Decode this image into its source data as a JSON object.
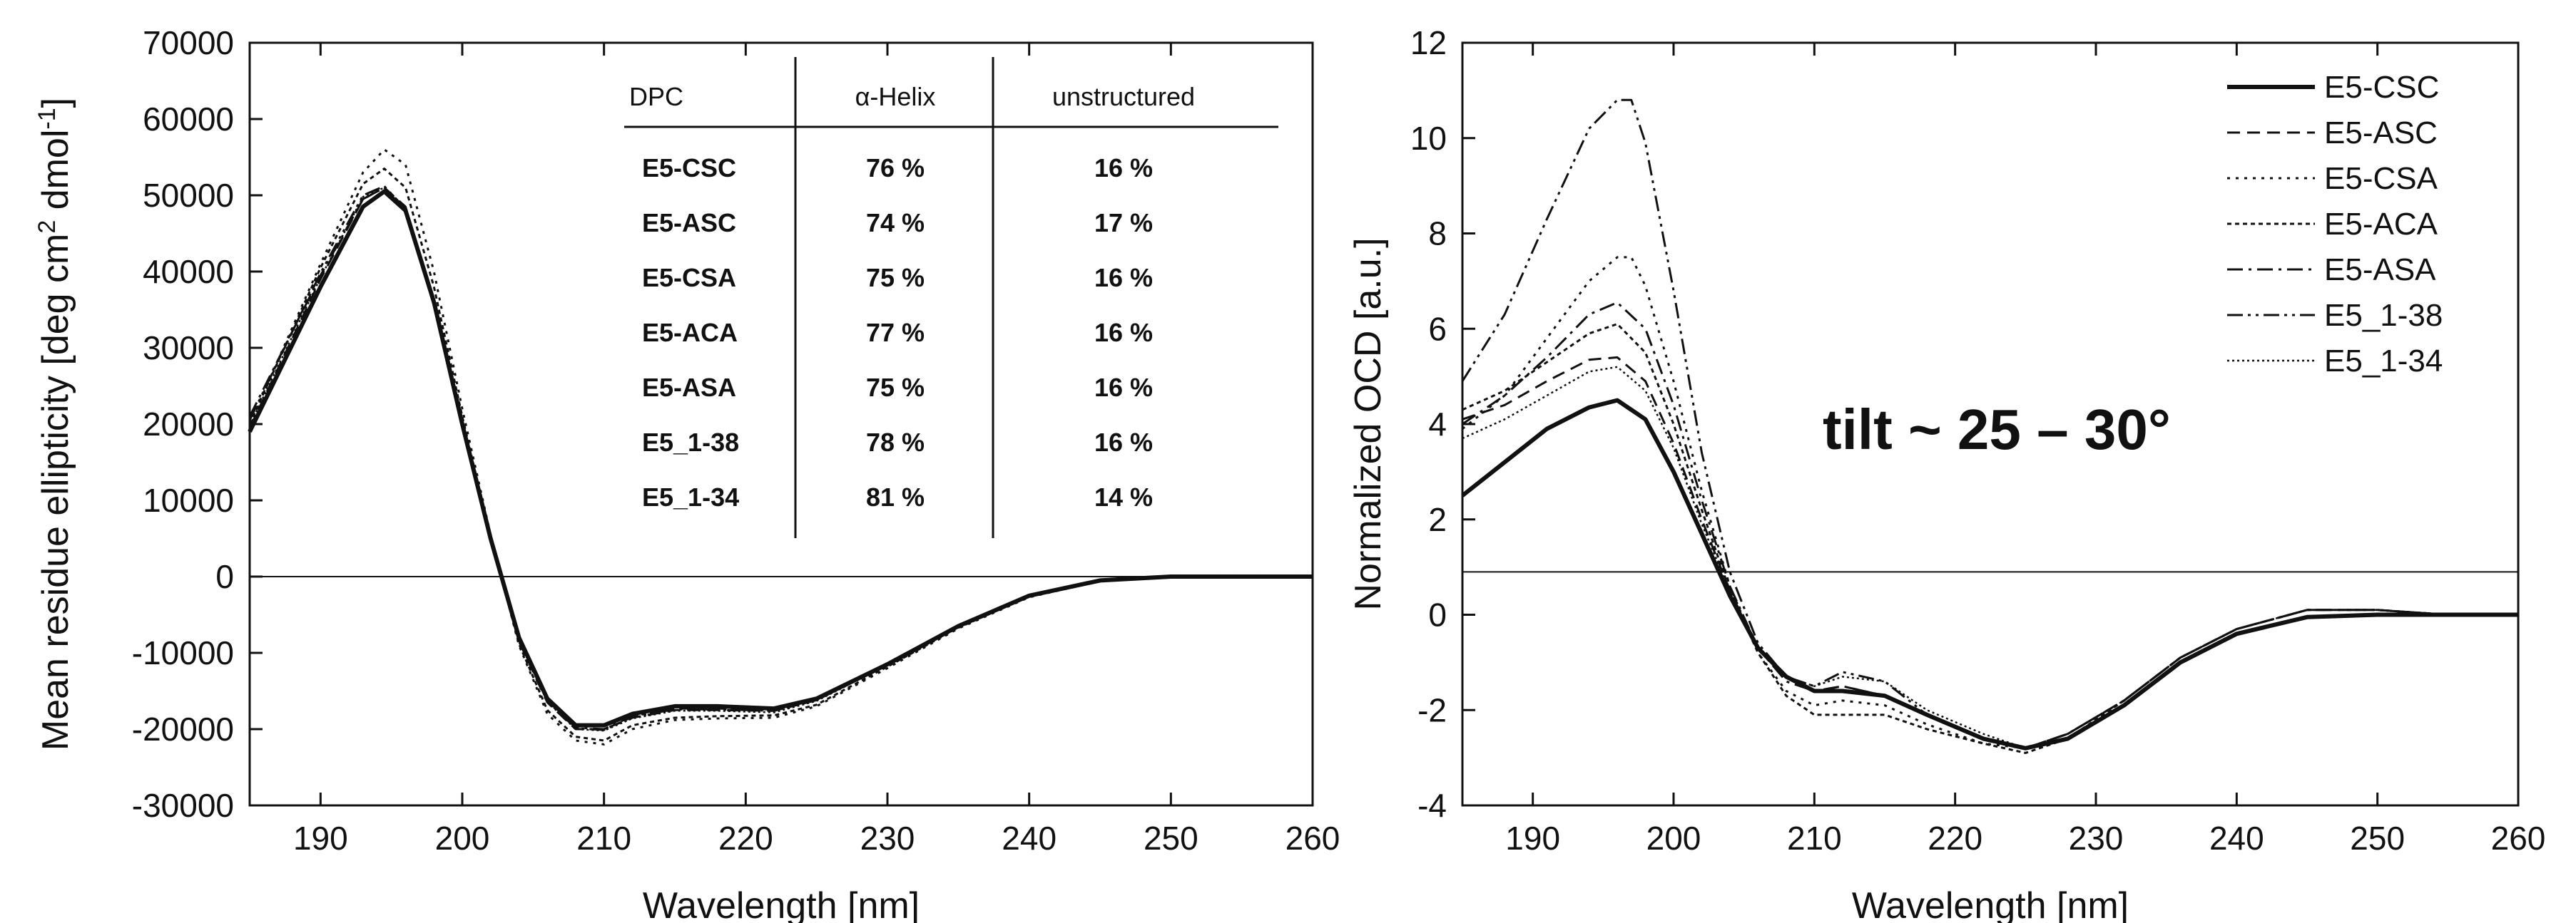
{
  "chart_data": [
    {
      "type": "line",
      "title": "",
      "xlabel": "Wavelength [nm]",
      "ylabel": "Mean residue ellipticity [deg cm² dmol⁻¹]",
      "ylabel_parts": [
        "Mean residue ellipticity [deg cm",
        "2",
        " dmol",
        "-1",
        "]"
      ],
      "xlim": [
        185,
        260
      ],
      "ylim": [
        -30000,
        70000
      ],
      "xticks": [
        190,
        200,
        210,
        220,
        230,
        240,
        250,
        260
      ],
      "yticks": [
        -30000,
        -20000,
        -10000,
        0,
        10000,
        20000,
        30000,
        40000,
        50000,
        60000,
        70000
      ],
      "grid": false,
      "zero_line": 0,
      "series": [
        {
          "style": "solid-bold",
          "x": [
            185,
            190,
            193,
            194.5,
            196,
            198,
            200,
            202,
            204,
            206,
            208,
            210,
            212,
            215,
            218,
            222,
            225,
            230,
            235,
            240,
            245,
            250,
            255,
            260
          ],
          "y": [
            19000,
            38000,
            48500,
            50500,
            48000,
            36000,
            20000,
            5000,
            -8000,
            -16000,
            -19500,
            -19500,
            -18000,
            -17000,
            -17000,
            -17300,
            -16000,
            -11500,
            -6500,
            -2500,
            -500,
            0,
            0,
            0
          ]
        },
        {
          "style": "dash",
          "x": [
            185,
            190,
            193,
            194.5,
            196,
            198,
            200,
            202,
            204,
            206,
            208,
            210,
            212,
            215,
            218,
            222,
            225,
            230,
            235,
            240,
            245,
            250,
            255,
            260
          ],
          "y": [
            19500,
            39000,
            49500,
            51000,
            48500,
            36000,
            20000,
            5000,
            -8500,
            -16500,
            -20000,
            -20000,
            -18500,
            -17500,
            -17500,
            -17600,
            -16200,
            -11600,
            -6600,
            -2600,
            -600,
            0,
            0,
            0
          ]
        },
        {
          "style": "dot",
          "x": [
            185,
            190,
            193,
            194.5,
            196,
            198,
            200,
            202,
            204,
            206,
            208,
            210,
            212,
            215,
            218,
            222,
            225,
            230,
            235,
            240,
            245,
            250,
            255,
            260
          ],
          "y": [
            20000,
            41000,
            53000,
            56000,
            54000,
            40000,
            22000,
            5500,
            -9000,
            -18000,
            -21500,
            -22000,
            -20000,
            -18800,
            -18600,
            -18500,
            -17000,
            -12000,
            -6800,
            -2700,
            -600,
            0,
            0,
            0
          ]
        },
        {
          "style": "dot-dense",
          "x": [
            185,
            190,
            193,
            194.5,
            196,
            198,
            200,
            202,
            204,
            206,
            208,
            210,
            212,
            215,
            218,
            222,
            225,
            230,
            235,
            240,
            245,
            250,
            255,
            260
          ],
          "y": [
            20000,
            40500,
            51500,
            53500,
            51000,
            38000,
            21000,
            5200,
            -8800,
            -17500,
            -21000,
            -21500,
            -19500,
            -18500,
            -18300,
            -18200,
            -16800,
            -11800,
            -6700,
            -2600,
            -600,
            0,
            0,
            0
          ]
        },
        {
          "style": "dash-dot",
          "x": [
            185,
            190,
            193,
            194.5,
            196,
            198,
            200,
            202,
            204,
            206,
            208,
            210,
            212,
            215,
            218,
            222,
            225,
            230,
            235,
            240,
            245,
            250,
            255,
            260
          ],
          "y": [
            21000,
            39500,
            49500,
            51000,
            48000,
            35500,
            19500,
            4800,
            -8200,
            -16200,
            -19800,
            -20000,
            -18300,
            -17300,
            -17300,
            -17500,
            -16100,
            -11500,
            -6500,
            -2500,
            -500,
            0,
            0,
            0
          ]
        },
        {
          "style": "dash-dot-dot",
          "x": [
            185,
            190,
            193,
            194.5,
            196,
            198,
            200,
            202,
            204,
            206,
            208,
            210,
            212,
            215,
            218,
            222,
            225,
            230,
            235,
            240,
            245,
            250,
            255,
            260
          ],
          "y": [
            20500,
            39800,
            50000,
            51200,
            48200,
            35800,
            19800,
            4900,
            -8300,
            -16300,
            -19900,
            -20100,
            -18400,
            -17400,
            -17400,
            -17600,
            -16200,
            -11600,
            -6600,
            -2600,
            -600,
            0,
            0,
            0
          ]
        },
        {
          "style": "dot-fine",
          "x": [
            185,
            190,
            193,
            194.5,
            196,
            198,
            200,
            202,
            204,
            206,
            208,
            210,
            212,
            215,
            218,
            222,
            225,
            230,
            235,
            240,
            245,
            250,
            255,
            260
          ],
          "y": [
            19800,
            39200,
            49800,
            51000,
            48400,
            36200,
            20200,
            5000,
            -8400,
            -16400,
            -20000,
            -20200,
            -18600,
            -17600,
            -17600,
            -17800,
            -16300,
            -11600,
            -6600,
            -2600,
            -600,
            0,
            0,
            0
          ]
        }
      ],
      "table": {
        "headers": [
          "DPC",
          "α-Helix",
          "unstructured"
        ],
        "rows": [
          [
            "E5-CSC",
            "76 %",
            "16 %"
          ],
          [
            "E5-ASC",
            "74 %",
            "17 %"
          ],
          [
            "E5-CSA",
            "75 %",
            "16 %"
          ],
          [
            "E5-ACA",
            "77 %",
            "16 %"
          ],
          [
            "E5-ASA",
            "75 %",
            "16 %"
          ],
          [
            "E5_1-38",
            "78 %",
            "16 %"
          ],
          [
            "E5_1-34",
            "81 %",
            "14 %"
          ]
        ]
      }
    },
    {
      "type": "line",
      "title": "",
      "xlabel": "Wavelength [nm]",
      "ylabel": "Normalized OCD [a.u.]",
      "xlim": [
        185,
        260
      ],
      "ylim": [
        -4,
        12
      ],
      "xticks": [
        190,
        200,
        210,
        220,
        230,
        240,
        250,
        260
      ],
      "yticks": [
        -4,
        -2,
        0,
        2,
        4,
        6,
        8,
        10,
        12
      ],
      "grid": false,
      "reference_line": 0.9,
      "legend_position": "top-right",
      "annotation": "tilt ~ 25 – 30°",
      "series": [
        {
          "name": "E5-CSC",
          "style": "solid-bold",
          "x": [
            185,
            188,
            191,
            194,
            196,
            198,
            200,
            202,
            204,
            206,
            208,
            210,
            212,
            215,
            218,
            222,
            225,
            228,
            232,
            236,
            240,
            245,
            250,
            255,
            260
          ],
          "y": [
            2.5,
            3.2,
            3.9,
            4.35,
            4.5,
            4.1,
            3.0,
            1.7,
            0.4,
            -0.7,
            -1.3,
            -1.6,
            -1.6,
            -1.7,
            -2.1,
            -2.6,
            -2.8,
            -2.6,
            -1.9,
            -1.0,
            -0.4,
            -0.05,
            0,
            0,
            0
          ]
        },
        {
          "name": "E5-ASC",
          "style": "dash",
          "x": [
            185,
            188,
            191,
            194,
            196,
            198,
            200,
            202,
            204,
            206,
            208,
            210,
            212,
            215,
            218,
            222,
            225,
            228,
            232,
            236,
            240,
            245,
            250,
            255,
            260
          ],
          "y": [
            4.1,
            4.4,
            4.9,
            5.35,
            5.4,
            4.9,
            3.6,
            2.0,
            0.5,
            -0.7,
            -1.3,
            -1.6,
            -1.5,
            -1.7,
            -2.1,
            -2.6,
            -2.8,
            -2.5,
            -1.8,
            -0.9,
            -0.3,
            0.1,
            0.1,
            0,
            0
          ]
        },
        {
          "name": "E5-CSA",
          "style": "dot",
          "x": [
            185,
            188,
            191,
            194,
            196,
            197,
            198,
            200,
            202,
            204,
            206,
            208,
            210,
            212,
            215,
            218,
            222,
            225,
            228,
            232,
            236,
            240,
            245,
            250,
            255,
            260
          ],
          "y": [
            3.9,
            4.6,
            5.8,
            7.0,
            7.5,
            7.5,
            6.9,
            4.9,
            2.6,
            0.6,
            -0.8,
            -1.6,
            -1.9,
            -1.8,
            -1.9,
            -2.3,
            -2.7,
            -2.8,
            -2.5,
            -1.8,
            -0.9,
            -0.3,
            0.1,
            0.1,
            0,
            0
          ]
        },
        {
          "name": "E5-ACA",
          "style": "dot-dense",
          "x": [
            185,
            188,
            191,
            194,
            196,
            198,
            200,
            202,
            204,
            206,
            208,
            210,
            212,
            215,
            218,
            222,
            225,
            228,
            232,
            236,
            240,
            245,
            250,
            255,
            260
          ],
          "y": [
            4.3,
            4.7,
            5.3,
            5.9,
            6.1,
            5.5,
            4.0,
            2.2,
            0.5,
            -0.8,
            -1.7,
            -2.1,
            -2.1,
            -2.1,
            -2.4,
            -2.7,
            -2.9,
            -2.6,
            -1.8,
            -0.9,
            -0.3,
            0.1,
            0.1,
            0,
            0
          ]
        },
        {
          "name": "E5-ASA",
          "style": "dash-dot",
          "x": [
            185,
            188,
            191,
            194,
            196,
            198,
            200,
            202,
            204,
            206,
            208,
            210,
            212,
            215,
            218,
            222,
            225,
            228,
            232,
            236,
            240,
            245,
            250,
            255,
            260
          ],
          "y": [
            4.0,
            4.6,
            5.4,
            6.3,
            6.55,
            6.0,
            4.4,
            2.4,
            0.6,
            -0.7,
            -1.4,
            -1.6,
            -1.5,
            -1.7,
            -2.1,
            -2.6,
            -2.8,
            -2.5,
            -1.8,
            -0.9,
            -0.3,
            0.1,
            0.1,
            0,
            0
          ]
        },
        {
          "name": "E5_1-38",
          "style": "dash-dot-dot",
          "x": [
            185,
            188,
            191,
            194,
            196,
            197,
            198,
            200,
            202,
            204,
            206,
            208,
            210,
            212,
            215,
            218,
            222,
            225,
            228,
            232,
            236,
            240,
            245,
            250,
            255,
            260
          ],
          "y": [
            4.9,
            6.3,
            8.3,
            10.2,
            10.8,
            10.8,
            9.9,
            6.8,
            3.4,
            0.9,
            -0.6,
            -1.3,
            -1.5,
            -1.2,
            -1.4,
            -2.1,
            -2.6,
            -2.8,
            -2.5,
            -1.8,
            -0.9,
            -0.3,
            0.1,
            0.1,
            0,
            0
          ]
        },
        {
          "name": "E5_1-34",
          "style": "dot-fine",
          "x": [
            185,
            188,
            191,
            194,
            196,
            198,
            200,
            202,
            204,
            206,
            208,
            210,
            212,
            215,
            218,
            222,
            225,
            228,
            232,
            236,
            240,
            245,
            250,
            255,
            260
          ],
          "y": [
            3.7,
            4.1,
            4.6,
            5.1,
            5.2,
            4.7,
            3.5,
            1.9,
            0.5,
            -0.7,
            -1.3,
            -1.5,
            -1.3,
            -1.4,
            -2.0,
            -2.5,
            -2.8,
            -2.5,
            -1.8,
            -0.9,
            -0.3,
            0.1,
            0.1,
            0,
            0
          ]
        }
      ]
    }
  ]
}
